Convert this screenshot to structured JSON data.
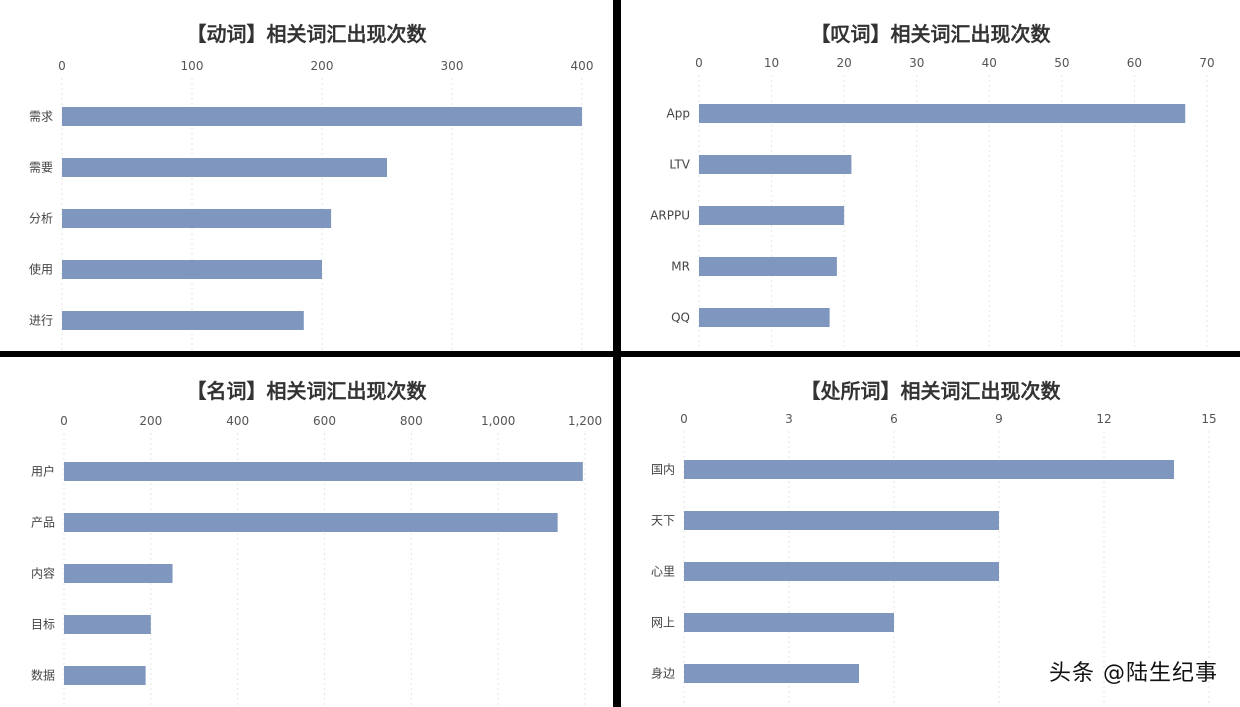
{
  "chart_data": [
    {
      "type": "bar",
      "orientation": "horizontal",
      "title": "【动词】相关词汇出现次数",
      "categories": [
        "需求",
        "需要",
        "分析",
        "使用",
        "进行"
      ],
      "values": [
        400,
        250,
        207,
        200,
        186
      ],
      "xlim": [
        0,
        400
      ],
      "ticks": [
        0,
        100,
        200,
        300,
        400
      ],
      "tick_labels": [
        "0",
        "100",
        "200",
        "300",
        "400"
      ],
      "grid": true,
      "color": "#7f97be"
    },
    {
      "type": "bar",
      "orientation": "horizontal",
      "title": "【叹词】相关词汇出现次数",
      "categories": [
        "App",
        "LTV",
        "ARPPU",
        "MR",
        "QQ"
      ],
      "values": [
        67,
        21,
        20,
        19,
        18
      ],
      "xlim": [
        0,
        70
      ],
      "ticks": [
        0,
        10,
        20,
        30,
        40,
        50,
        60,
        70
      ],
      "tick_labels": [
        "0",
        "10",
        "20",
        "30",
        "40",
        "50",
        "60",
        "70"
      ],
      "grid": true,
      "color": "#7f97be"
    },
    {
      "type": "bar",
      "orientation": "horizontal",
      "title": "【名词】相关词汇出现次数",
      "categories": [
        "用户",
        "产品",
        "内容",
        "目标",
        "数据"
      ],
      "values": [
        1195,
        1137,
        250,
        200,
        188
      ],
      "xlim": [
        0,
        1200
      ],
      "ticks": [
        0,
        200,
        400,
        600,
        800,
        1000,
        1200
      ],
      "tick_labels": [
        "0",
        "200",
        "400",
        "600",
        "800",
        "1,000",
        "1,200"
      ],
      "grid": true,
      "color": "#7f97be"
    },
    {
      "type": "bar",
      "orientation": "horizontal",
      "title": "【处所词】相关词汇出现次数",
      "categories": [
        "国内",
        "天下",
        "心里",
        "网上",
        "身边"
      ],
      "values": [
        14,
        9,
        9,
        6,
        5
      ],
      "xlim": [
        0,
        15
      ],
      "ticks": [
        0,
        3,
        6,
        9,
        12,
        15
      ],
      "tick_labels": [
        "0",
        "3",
        "6",
        "9",
        "12",
        "15"
      ],
      "grid": true,
      "color": "#7f97be"
    }
  ],
  "watermark": "头条 @陆生纪事"
}
